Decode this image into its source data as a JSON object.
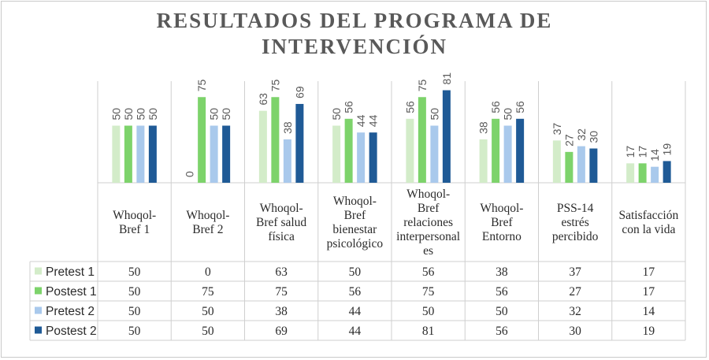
{
  "chart_data": {
    "type": "bar",
    "title_lines": [
      "RESULTADOS DEL PROGRAMA DE",
      "INTERVENCIÓN"
    ],
    "categories": [
      [
        "Whoqol-",
        "Bref 1"
      ],
      [
        "Whoqol-",
        "Bref 2"
      ],
      [
        "Whoqol-",
        "Bref salud",
        "física"
      ],
      [
        "Whoqol-",
        "Bref",
        "bienestar",
        "psicológico"
      ],
      [
        "Whoqol-",
        "Bref",
        "relaciones",
        "interpersonal",
        "es"
      ],
      [
        "Whoqol-",
        "Bref",
        "Entorno"
      ],
      [
        "PSS-14",
        "estrés",
        "percibido"
      ],
      [
        "Satisfacción",
        "con la vida"
      ]
    ],
    "series": [
      {
        "name": "Pretest 1",
        "color": "#d3ecc9",
        "values": [
          50,
          0,
          63,
          50,
          56,
          38,
          37,
          17
        ]
      },
      {
        "name": "Postest 1",
        "color": "#7dd36b",
        "values": [
          50,
          75,
          75,
          56,
          75,
          56,
          27,
          17
        ]
      },
      {
        "name": "Pretest 2",
        "color": "#a9c9ec",
        "values": [
          50,
          50,
          38,
          44,
          50,
          50,
          32,
          14
        ]
      },
      {
        "name": "Postest 2",
        "color": "#1f5a96",
        "values": [
          50,
          50,
          69,
          44,
          81,
          56,
          30,
          19
        ]
      }
    ],
    "ylim": [
      0,
      100
    ],
    "data_labels": true,
    "legend_placement": "data-table-left",
    "has_data_table": true
  }
}
